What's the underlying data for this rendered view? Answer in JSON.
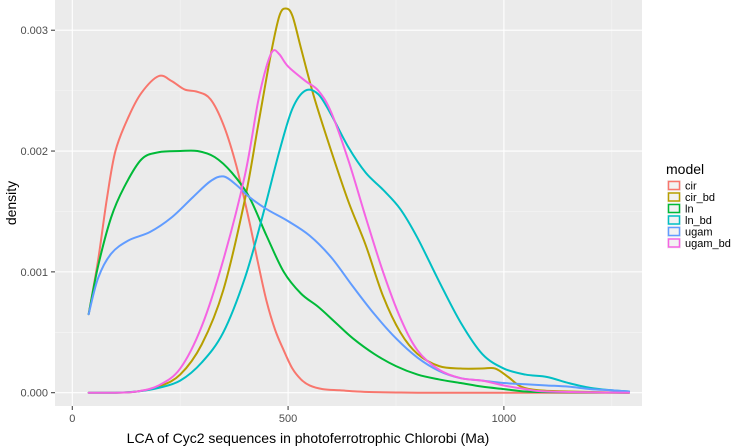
{
  "chart_data": {
    "type": "line",
    "title": "",
    "xlabel": "LCA of Cyc2 sequences in photoferrotrophic Chlorobi (Ma)",
    "ylabel": "density",
    "xlim": [
      -40,
      1320
    ],
    "ylim": [
      -0.00011,
      0.00325
    ],
    "x_ticks": [
      0,
      500,
      1000
    ],
    "x_tick_labels": [
      "0",
      "500",
      "1000"
    ],
    "y_ticks": [
      0,
      0.001,
      0.002,
      0.003
    ],
    "y_tick_labels": [
      "0.000",
      "0.001",
      "0.002",
      "0.003"
    ],
    "grid": true,
    "legend": {
      "title": "model",
      "position": "right"
    },
    "series": [
      {
        "name": "cir",
        "color": "#F8766D",
        "points": [
          [
            38,
            0.00065
          ],
          [
            60,
            0.0011
          ],
          [
            80,
            0.0016
          ],
          [
            100,
            0.002
          ],
          [
            130,
            0.00228
          ],
          [
            160,
            0.00248
          ],
          [
            200,
            0.00262
          ],
          [
            230,
            0.00258
          ],
          [
            260,
            0.00251
          ],
          [
            290,
            0.00249
          ],
          [
            320,
            0.00243
          ],
          [
            350,
            0.00222
          ],
          [
            380,
            0.00188
          ],
          [
            410,
            0.00142
          ],
          [
            430,
            0.00108
          ],
          [
            450,
            0.00076
          ],
          [
            470,
            0.00052
          ],
          [
            490,
            0.00035
          ],
          [
            510,
            0.0002
          ],
          [
            530,
            0.00011
          ],
          [
            550,
            6e-05
          ],
          [
            580,
            3e-05
          ],
          [
            620,
            2e-05
          ],
          [
            660,
            1e-05
          ],
          [
            700,
            5e-06
          ],
          [
            750,
            2e-06
          ],
          [
            800,
            0
          ],
          [
            900,
            0
          ],
          [
            1000,
            0
          ],
          [
            1100,
            0
          ],
          [
            1290,
            0
          ]
        ]
      },
      {
        "name": "cir_bd",
        "color": "#B79F00",
        "points": [
          [
            38,
            0
          ],
          [
            100,
            0
          ],
          [
            150,
            1e-05
          ],
          [
            200,
            5e-05
          ],
          [
            250,
            0.00015
          ],
          [
            300,
            0.0004
          ],
          [
            350,
            0.00085
          ],
          [
            400,
            0.0016
          ],
          [
            430,
            0.0022
          ],
          [
            460,
            0.0028
          ],
          [
            480,
            0.00312
          ],
          [
            495,
            0.00318
          ],
          [
            510,
            0.00312
          ],
          [
            530,
            0.00285
          ],
          [
            560,
            0.00245
          ],
          [
            600,
            0.002
          ],
          [
            640,
            0.00158
          ],
          [
            680,
            0.00122
          ],
          [
            720,
            0.0008
          ],
          [
            760,
            0.0005
          ],
          [
            800,
            0.00032
          ],
          [
            850,
            0.00022
          ],
          [
            900,
            0.0002
          ],
          [
            950,
            0.0002
          ],
          [
            980,
            0.0002
          ],
          [
            1010,
            0.00013
          ],
          [
            1040,
            5e-05
          ],
          [
            1080,
            2e-05
          ],
          [
            1150,
            1e-05
          ],
          [
            1290,
            0
          ]
        ]
      },
      {
        "name": "ln",
        "color": "#00BA38",
        "points": [
          [
            38,
            0.00065
          ],
          [
            60,
            0.00105
          ],
          [
            90,
            0.00145
          ],
          [
            120,
            0.0017
          ],
          [
            160,
            0.00193
          ],
          [
            200,
            0.00199
          ],
          [
            250,
            0.002
          ],
          [
            290,
            0.002
          ],
          [
            330,
            0.00195
          ],
          [
            370,
            0.00182
          ],
          [
            410,
            0.00162
          ],
          [
            450,
            0.0013
          ],
          [
            490,
            0.001
          ],
          [
            530,
            0.00082
          ],
          [
            570,
            0.00071
          ],
          [
            610,
            0.00058
          ],
          [
            650,
            0.00045
          ],
          [
            700,
            0.00032
          ],
          [
            750,
            0.00022
          ],
          [
            800,
            0.00015
          ],
          [
            850,
            0.00011
          ],
          [
            900,
            8e-05
          ],
          [
            950,
            5e-05
          ],
          [
            1000,
            3e-05
          ],
          [
            1050,
            1e-05
          ],
          [
            1100,
            5e-06
          ],
          [
            1290,
            0
          ]
        ]
      },
      {
        "name": "ln_bd",
        "color": "#00BFC4",
        "points": [
          [
            38,
            0
          ],
          [
            100,
            0
          ],
          [
            150,
            1e-05
          ],
          [
            200,
            4e-05
          ],
          [
            250,
            0.0001
          ],
          [
            300,
            0.00025
          ],
          [
            350,
            0.0005
          ],
          [
            400,
            0.00095
          ],
          [
            440,
            0.00145
          ],
          [
            480,
            0.002
          ],
          [
            510,
            0.00235
          ],
          [
            540,
            0.0025
          ],
          [
            570,
            0.00247
          ],
          [
            600,
            0.0023
          ],
          [
            640,
            0.00203
          ],
          [
            680,
            0.00182
          ],
          [
            720,
            0.00168
          ],
          [
            760,
            0.00152
          ],
          [
            800,
            0.00128
          ],
          [
            850,
            0.00092
          ],
          [
            900,
            0.00058
          ],
          [
            950,
            0.00032
          ],
          [
            1000,
            0.0002
          ],
          [
            1050,
            0.00015
          ],
          [
            1100,
            0.00013
          ],
          [
            1150,
            8e-05
          ],
          [
            1200,
            4e-05
          ],
          [
            1250,
            2e-05
          ],
          [
            1290,
            1e-05
          ]
        ]
      },
      {
        "name": "ugam",
        "color": "#619CFF",
        "points": [
          [
            38,
            0.00065
          ],
          [
            60,
            0.00095
          ],
          [
            90,
            0.00115
          ],
          [
            130,
            0.00126
          ],
          [
            180,
            0.00133
          ],
          [
            230,
            0.00145
          ],
          [
            280,
            0.00162
          ],
          [
            320,
            0.00175
          ],
          [
            350,
            0.00179
          ],
          [
            380,
            0.00172
          ],
          [
            410,
            0.00162
          ],
          [
            450,
            0.00152
          ],
          [
            500,
            0.00142
          ],
          [
            550,
            0.0013
          ],
          [
            600,
            0.00112
          ],
          [
            650,
            0.00088
          ],
          [
            700,
            0.00065
          ],
          [
            750,
            0.00045
          ],
          [
            800,
            0.00029
          ],
          [
            850,
            0.00018
          ],
          [
            900,
            0.00012
          ],
          [
            950,
            0.0001
          ],
          [
            1000,
            8e-05
          ],
          [
            1050,
            7e-05
          ],
          [
            1100,
            6e-05
          ],
          [
            1150,
            5e-05
          ],
          [
            1200,
            3e-05
          ],
          [
            1250,
            2e-05
          ],
          [
            1290,
            1e-05
          ]
        ]
      },
      {
        "name": "ugam_bd",
        "color": "#F564E3",
        "points": [
          [
            38,
            0
          ],
          [
            100,
            0
          ],
          [
            150,
            1e-05
          ],
          [
            200,
            6e-05
          ],
          [
            250,
            0.0002
          ],
          [
            300,
            0.00055
          ],
          [
            350,
            0.0011
          ],
          [
            400,
            0.0018
          ],
          [
            430,
            0.0024
          ],
          [
            450,
            0.0027
          ],
          [
            465,
            0.00283
          ],
          [
            480,
            0.0028
          ],
          [
            500,
            0.0027
          ],
          [
            540,
            0.00258
          ],
          [
            570,
            0.0025
          ],
          [
            600,
            0.00232
          ],
          [
            640,
            0.00192
          ],
          [
            680,
            0.00145
          ],
          [
            720,
            0.001
          ],
          [
            760,
            0.00062
          ],
          [
            800,
            0.00035
          ],
          [
            850,
            0.00019
          ],
          [
            900,
            0.00012
          ],
          [
            950,
            0.0001
          ],
          [
            1000,
            6e-05
          ],
          [
            1050,
            3e-05
          ],
          [
            1100,
            1e-05
          ],
          [
            1290,
            0
          ]
        ]
      }
    ]
  }
}
